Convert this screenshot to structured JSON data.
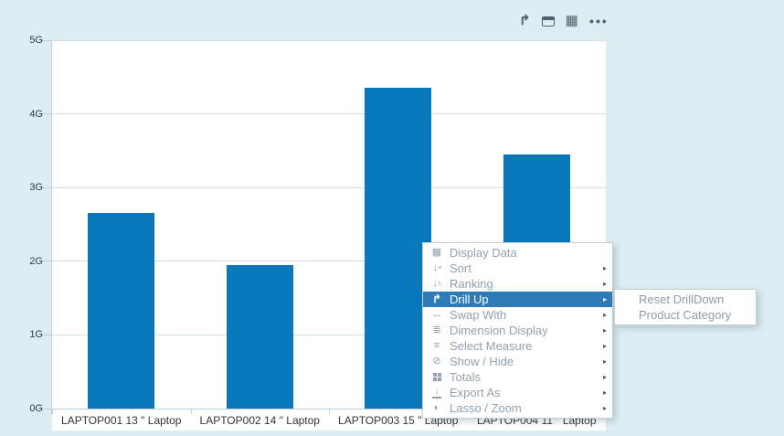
{
  "toolbar": {
    "icons": [
      {
        "name": "drill-up-icon"
      },
      {
        "name": "window-icon"
      },
      {
        "name": "table-view-icon"
      },
      {
        "name": "more-options-icon"
      }
    ]
  },
  "chart_data": {
    "type": "bar",
    "title": "",
    "xlabel": "",
    "ylabel": "",
    "categories": [
      "LAPTOP001 13 \" Laptop",
      "LAPTOP002 14 \" Laptop",
      "LAPTOP003 15 \" Laptop",
      "LAPTOP004 11 \" Laptop"
    ],
    "values": [
      2.65,
      1.95,
      4.35,
      3.45
    ],
    "unit": "G",
    "yticks": [
      "0G",
      "1G",
      "2G",
      "3G",
      "4G",
      "5G"
    ],
    "ylim": [
      0,
      5
    ],
    "grid": true,
    "legend": "none",
    "bar_color": "#0878bb"
  },
  "context_menu": {
    "items": [
      {
        "label": "Display Data",
        "icon": "display-data-icon",
        "submenu": false,
        "selected": false
      },
      {
        "label": "Sort",
        "icon": "sort-icon",
        "submenu": true,
        "selected": false
      },
      {
        "label": "Ranking",
        "icon": "ranking-icon",
        "submenu": true,
        "selected": false
      },
      {
        "label": "Drill Up",
        "icon": "drill-up-icon",
        "submenu": true,
        "selected": true
      },
      {
        "label": "Swap With",
        "icon": "swap-icon",
        "submenu": true,
        "selected": false
      },
      {
        "label": "Dimension Display",
        "icon": "dimension-display-icon",
        "submenu": true,
        "selected": false
      },
      {
        "label": "Select Measure",
        "icon": "select-measure-icon",
        "submenu": true,
        "selected": false
      },
      {
        "label": "Show / Hide",
        "icon": "show-hide-icon",
        "submenu": true,
        "selected": false
      },
      {
        "label": "Totals",
        "icon": "totals-icon",
        "submenu": true,
        "selected": false
      },
      {
        "label": "Export As",
        "icon": "export-icon",
        "submenu": true,
        "selected": false
      },
      {
        "label": "Lasso / Zoom",
        "icon": "lasso-zoom-icon",
        "submenu": true,
        "selected": false
      }
    ],
    "submenu": {
      "parent": "Drill Up",
      "items": [
        {
          "label": "Reset DrillDown"
        },
        {
          "label": "Product Category"
        }
      ]
    }
  },
  "colors": {
    "background": "#dceef2",
    "plot_background": "#ffffff",
    "bar": "#0878bb",
    "menu_highlight": "#2d7cb8",
    "menu_text": "#92a1af",
    "axis_line": "#bfcfda",
    "gridline": "#d3dfe8",
    "toolbar_icon": "#50606d"
  }
}
